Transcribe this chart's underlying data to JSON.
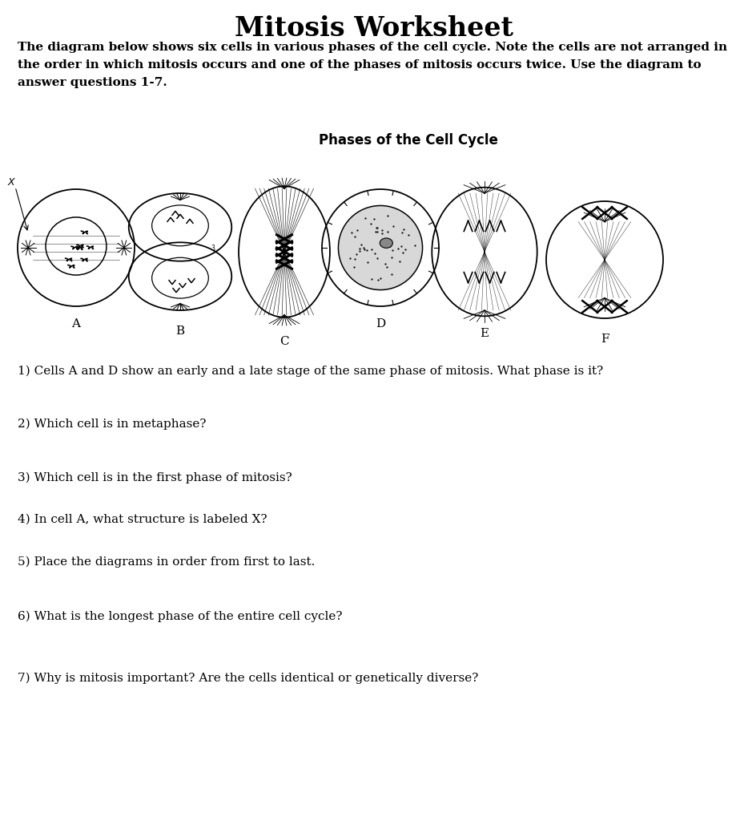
{
  "title": "Mitosis Worksheet",
  "title_fontsize": 24,
  "title_fontweight": "bold",
  "background_color": "#ffffff",
  "intro_line1": "The diagram below shows six cells in various phases of the cell cycle. Note the cells are not arranged in",
  "intro_line2": "the order in which mitosis occurs and one of the phases of mitosis occurs twice. Use the diagram to",
  "intro_line3": "answer questions 1-7.",
  "intro_fontsize": 11,
  "diagram_title": "Phases of the Cell Cycle",
  "diagram_title_fontsize": 12,
  "cell_labels": [
    "A",
    "B",
    "C",
    "D",
    "E",
    "F"
  ],
  "questions": [
    "1) Cells A and D show an early and a late stage of the same phase of mitosis. What phase is it?",
    "2) Which cell is in metaphase?",
    "3) Which cell is in the first phase of mitosis?",
    "4) In cell A, what structure is labeled X?",
    "5) Place the diagrams in order from first to last.",
    "6) What is the longest phase of the entire cell cycle?",
    "7) Why is mitosis important? Are the cells identical or genetically diverse?"
  ],
  "question_fontsize": 11,
  "text_color": "#000000",
  "line_color": "#000000"
}
